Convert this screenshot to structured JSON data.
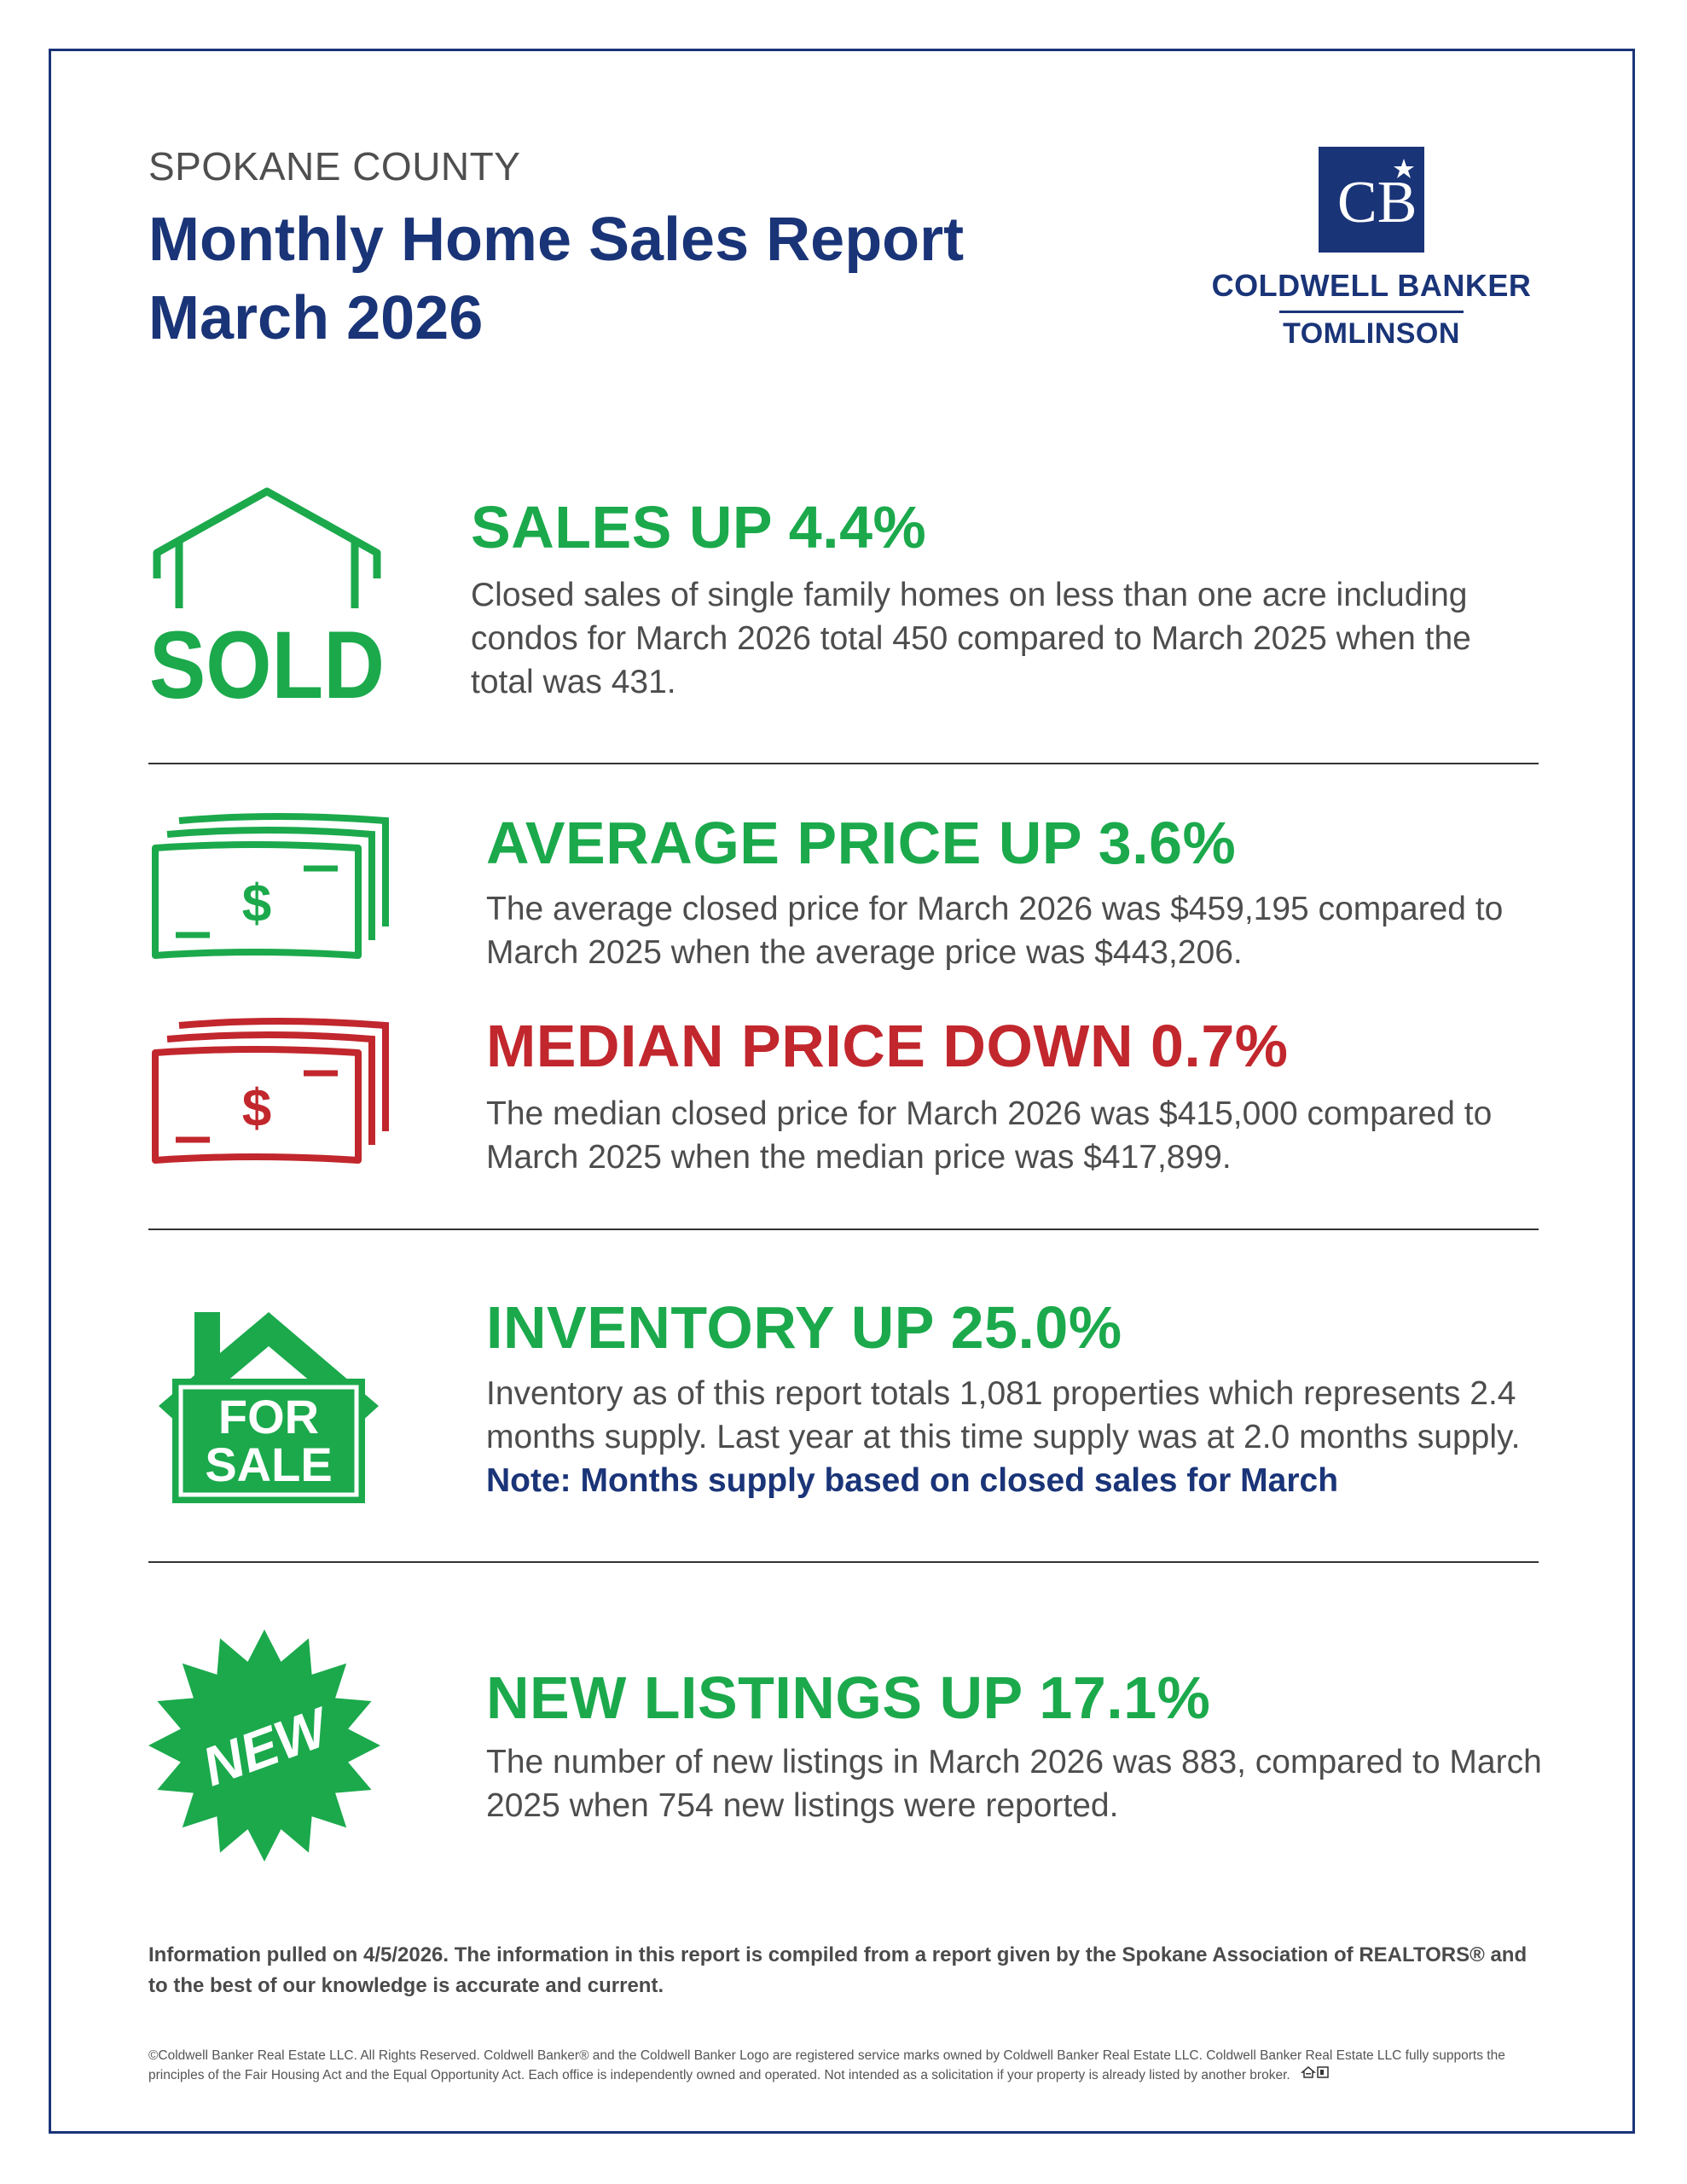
{
  "header": {
    "kicker": "SPOKANE COUNTY",
    "title_line1": "Monthly Home Sales Report",
    "title_line2": "March 2026"
  },
  "logo": {
    "brand": "COLDWELL BANKER",
    "office": "TOMLINSON",
    "mark_text": "CB"
  },
  "sections": [
    {
      "icon": "sold-house-icon",
      "icon_text": "SOLD",
      "heading": "SALES UP 4.4%",
      "body": "Closed sales of single family homes on less than one acre including condos for March 2026 total 450 compared to March 2025 when the total was 431."
    },
    {
      "icon": "green-cash-icon",
      "icon_text": "$",
      "heading": "AVERAGE PRICE UP 3.6%",
      "body": "The average closed price for March 2026 was $459,195 compared to March 2025 when the average price was $443,206."
    },
    {
      "icon": "red-cash-icon",
      "icon_text": "$",
      "heading": "MEDIAN PRICE DOWN 0.7%",
      "body": "The median closed price for March 2026 was $415,000 compared to March 2025 when the median price was $417,899."
    },
    {
      "icon": "for-sale-house-icon",
      "icon_text_1": "FOR",
      "icon_text_2": "SALE",
      "heading": "INVENTORY UP 25.0%",
      "body": "Inventory as of this report totals 1,081 properties which represents 2.4 months supply. Last year at this time supply was at 2.0 months supply.",
      "note": "Note: Months supply based on closed sales for March"
    },
    {
      "icon": "new-starburst-icon",
      "icon_text": "NEW",
      "heading": "NEW LISTINGS UP 17.1%",
      "body": "The number of new listings in March 2026 was 883, compared to March 2025 when 754 new listings were reported."
    }
  ],
  "footer": {
    "disclaimer": "Information pulled on 4/5/2026. The information in this report is compiled from a report given by the Spokane Association of REALTORS® and to the best of our knowledge is accurate and current.",
    "legal": "©Coldwell Banker Real Estate LLC. All Rights Reserved. Coldwell Banker® and the Coldwell Banker Logo are registered service marks owned by Coldwell Banker Real Estate LLC. Coldwell Banker Real Estate LLC fully supports the principles of the Fair Housing Act and the Equal Opportunity Act. Each office is independently owned and operated. Not intended as a solicitation if your property is already listed by another broker."
  },
  "colors": {
    "navy": "#1a3478",
    "green": "#1ba94c",
    "red": "#c1272d",
    "text": "#4d4d4d"
  }
}
